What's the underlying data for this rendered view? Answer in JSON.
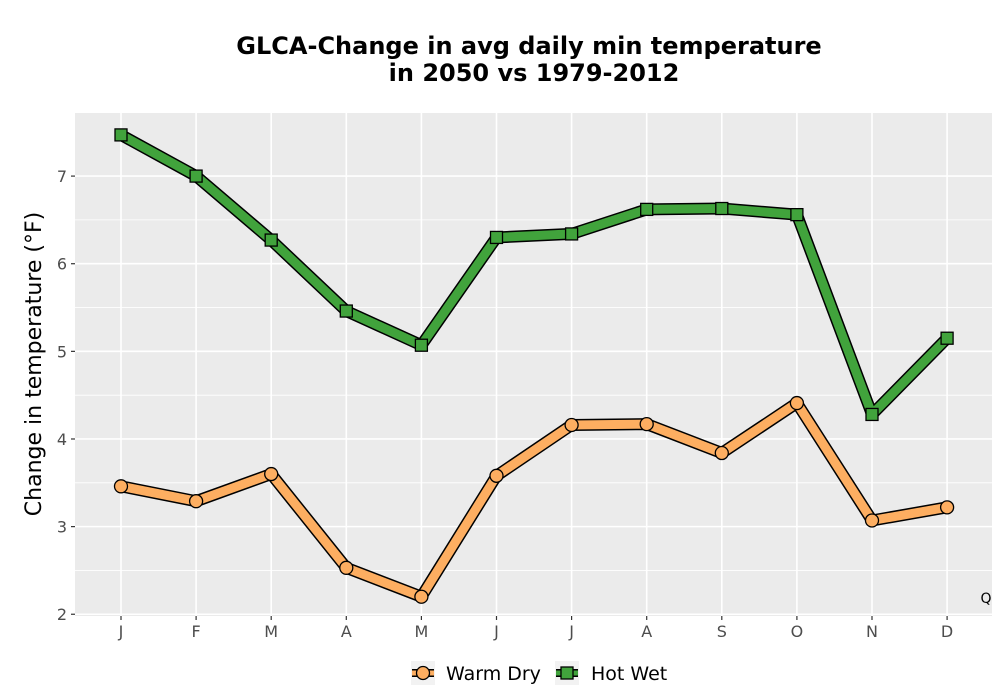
{
  "chart_data": {
    "type": "line",
    "title_line1": "GLCA-Change in avg daily min temperature",
    "title_line2": "in 2050 vs 1979-2012",
    "xlabel": "",
    "ylabel": "Change in temperature (°F)",
    "categories": [
      "J",
      "F",
      "M",
      "A",
      "M",
      "J",
      "J",
      "A",
      "S",
      "O",
      "N",
      "D"
    ],
    "ylim": [
      1.98,
      7.72
    ],
    "yticks": [
      2,
      3,
      4,
      5,
      6,
      7
    ],
    "grid": true,
    "legend_position": "bottom",
    "series": [
      {
        "name": "Warm Dry",
        "marker": "circle",
        "color": "#FDAE61",
        "values": [
          3.46,
          3.29,
          3.6,
          2.53,
          2.2,
          3.58,
          4.16,
          4.17,
          3.84,
          4.41,
          3.07,
          3.22
        ]
      },
      {
        "name": "Hot Wet",
        "marker": "square",
        "color": "#41A33C",
        "values": [
          7.47,
          7.0,
          6.27,
          5.46,
          5.07,
          6.3,
          6.34,
          6.62,
          6.63,
          6.56,
          4.28,
          5.15
        ]
      }
    ],
    "annotation": "Q"
  },
  "colors": {
    "panel": "#EBEBEB",
    "grid_major": "#FFFFFF",
    "outline": "#000000"
  }
}
